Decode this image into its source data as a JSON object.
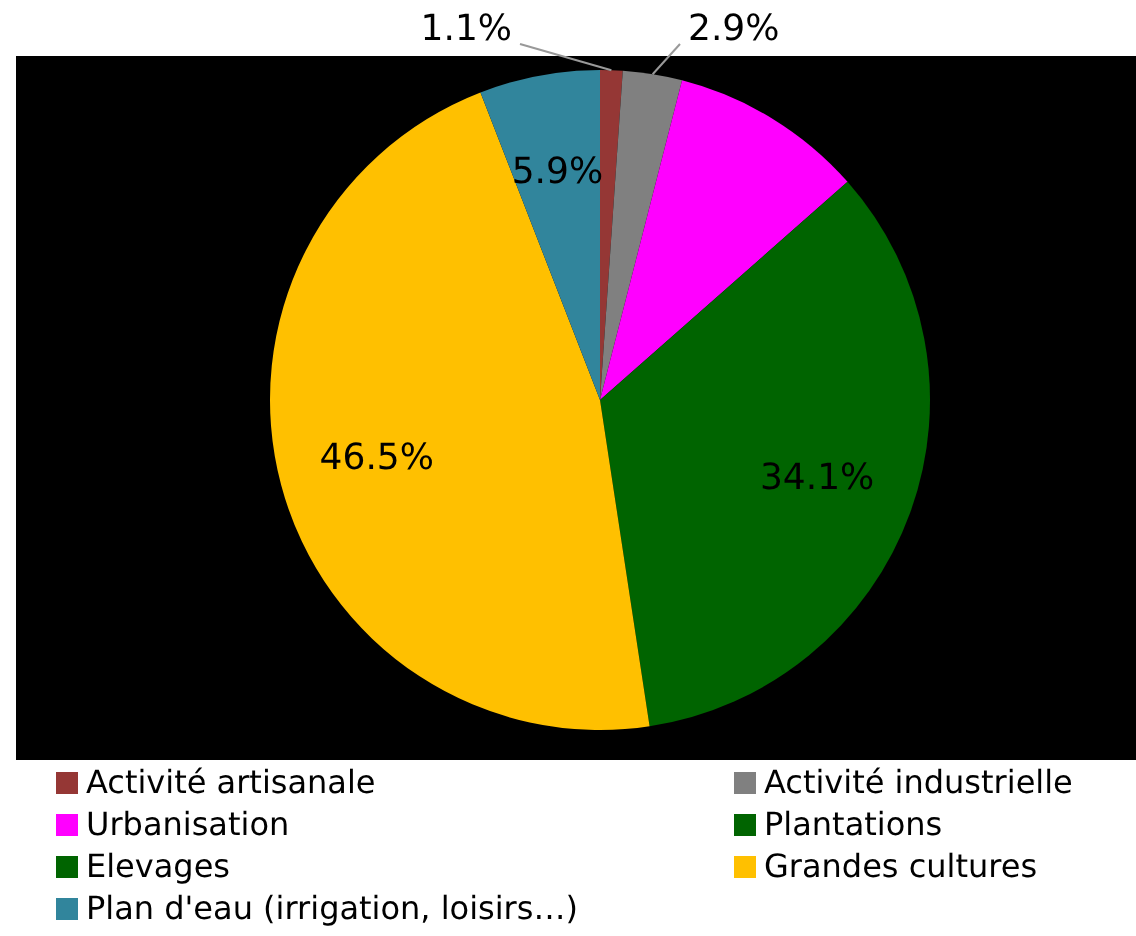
{
  "chart_data": {
    "type": "pie",
    "categories": [
      "Activité artisanale",
      "Activité industrielle",
      "Urbanisation",
      "Plantations",
      "Elevages",
      "Grandes cultures",
      "Plan d'eau (irrigation, loisirs…)"
    ],
    "values": [
      1.1,
      2.9,
      9.5,
      34.1,
      0,
      46.5,
      5.9
    ],
    "colors": [
      "#953735",
      "#808080",
      "#ff00ff",
      "#006400",
      "#006400",
      "#ffc000",
      "#31859c"
    ],
    "value_labels": [
      "1.1%",
      "2.9%",
      null,
      "34.1%",
      null,
      "46.5%",
      "5.9%"
    ],
    "legend": "bottom"
  }
}
